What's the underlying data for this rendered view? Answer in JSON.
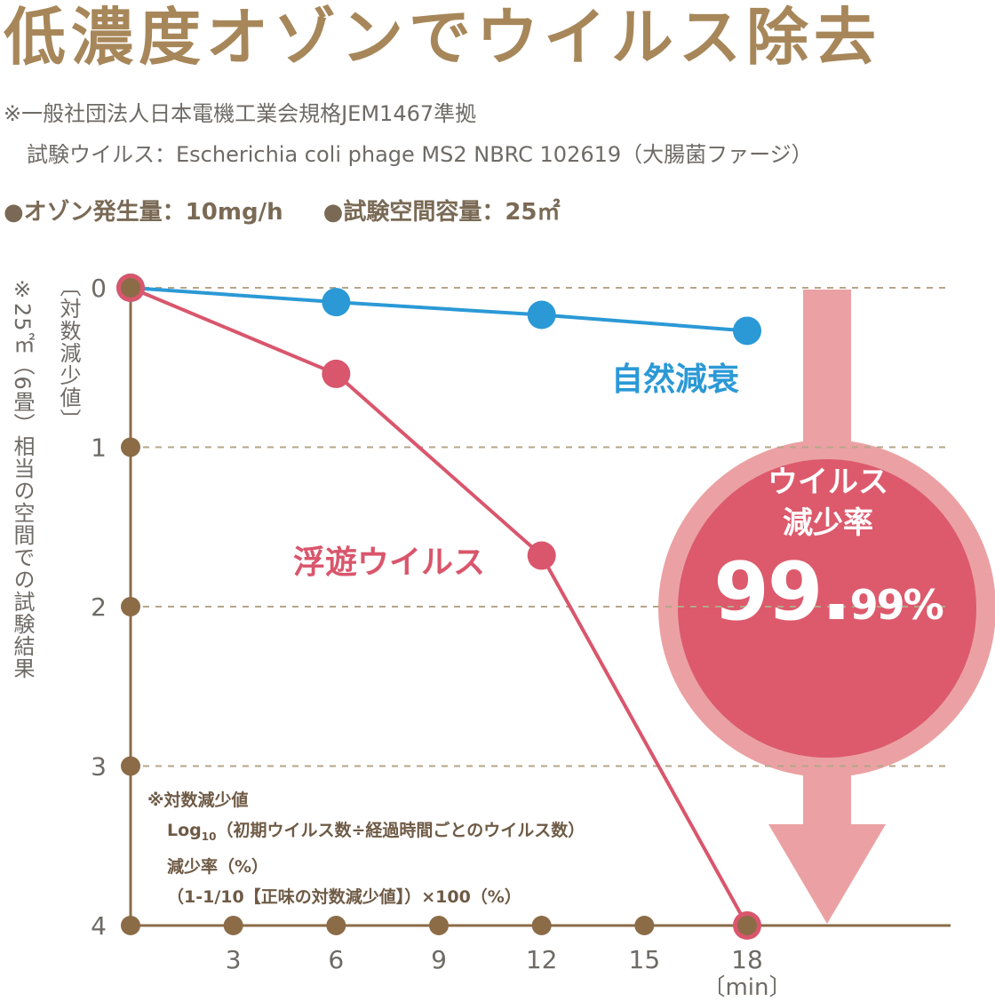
{
  "header": {
    "title": "低濃度オゾンでウイルス除去",
    "note1": "※一般社団法人日本電機工業会規格JEM1467準拠",
    "note2": "試験ウイルス：Escherichia coli phage MS2 NBRC 102619（大腸菌ファージ）",
    "spec1": "●オゾン発生量：10mg/h",
    "spec2": "●試験空間容量：25㎡"
  },
  "side_note": "※25㎡（6畳）相当の空間での試験結果",
  "footnote": {
    "line1": "※対数減少値",
    "line2_prefix": "Log",
    "line2_sub": "10",
    "line2_rest": "（初期ウイルス数÷経過時間ごとのウイルス数）",
    "line3": "減少率（%）",
    "line4": "（1-1/10【正味の対数減少値】）×100（%）"
  },
  "badge": {
    "line1": "ウイルス",
    "line2": "減少率",
    "value_main": "99.",
    "value_rest": "99%"
  },
  "colors": {
    "brown": "#8b6c47",
    "blue": "#2b99d6",
    "pink": "#d9566c",
    "arrow": "#eba1a3",
    "badge": "#dc5a6c",
    "grid": "#b5a58a"
  },
  "chart_data": {
    "type": "line",
    "ylabel": "〔対数減少値〕",
    "xunit": "〔min〕",
    "x_ticks": [
      3,
      6,
      9,
      12,
      15,
      18
    ],
    "y_ticks": [
      0,
      1,
      2,
      3,
      4
    ],
    "xlim": [
      0,
      18
    ],
    "ylim": [
      0,
      4
    ],
    "y_inverted": true,
    "grid": "dashed-horizontal",
    "series": [
      {
        "name": "自然減衰",
        "color": "#2b99d6",
        "x": [
          0,
          6,
          12,
          18
        ],
        "y": [
          0,
          0.09,
          0.17,
          0.27
        ]
      },
      {
        "name": "浮遊ウイルス",
        "color": "#d9566c",
        "x": [
          0,
          6,
          12,
          18
        ],
        "y": [
          0,
          0.54,
          1.68,
          4.0
        ]
      }
    ]
  }
}
